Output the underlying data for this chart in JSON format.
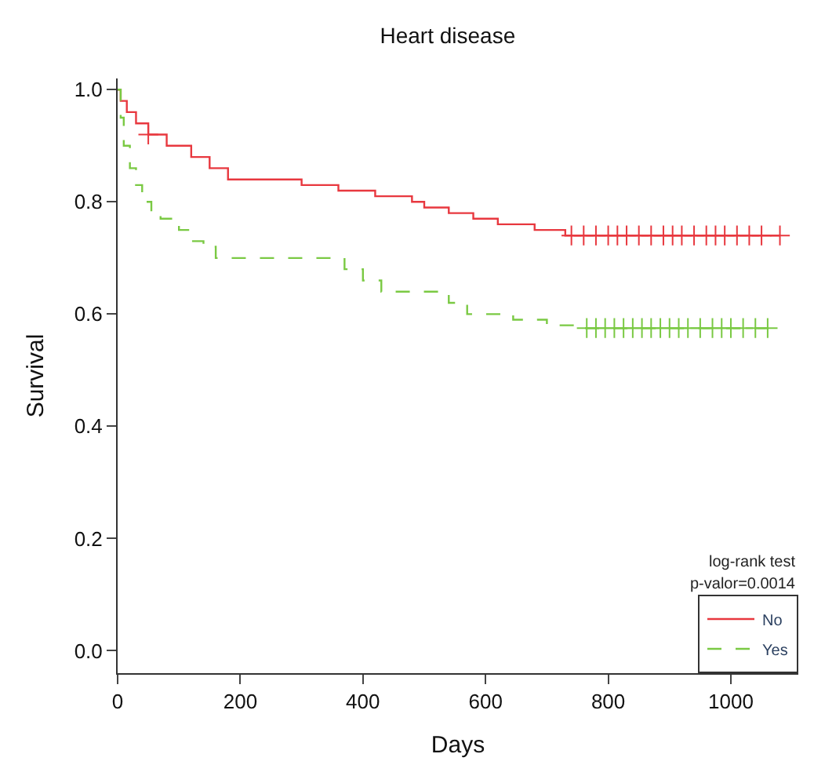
{
  "chart_data": {
    "type": "step",
    "title": "Heart disease",
    "xlabel": "Days",
    "ylabel": "Survival",
    "xlim": [
      0,
      1110
    ],
    "xticks": [
      0,
      200,
      400,
      600,
      800,
      1000
    ],
    "ylim": [
      -0.04,
      1.02
    ],
    "yticks": [
      {
        "value": 0,
        "label": "0.0"
      },
      {
        "value": 0.2,
        "label": "0.2"
      },
      {
        "value": 0.4,
        "label": "0.4"
      },
      {
        "value": 0.6,
        "label": "0.6"
      },
      {
        "value": 0.8,
        "label": "0.8"
      },
      {
        "value": 1,
        "label": "1.0"
      }
    ],
    "grid": false,
    "legend": "bottom right",
    "marker": "none",
    "annotations": [
      "log-rank test",
      "p-valor=0.0014"
    ],
    "series": [
      {
        "name": "No",
        "color": "#e8383f",
        "line_style": "solid",
        "x": [
          0,
          5,
          15,
          30,
          50,
          80,
          120,
          150,
          180,
          300,
          360,
          420,
          480,
          500,
          540,
          580,
          620,
          680,
          730,
          1080
        ],
        "values": [
          1.0,
          0.98,
          0.96,
          0.94,
          0.92,
          0.9,
          0.88,
          0.86,
          0.84,
          0.83,
          0.82,
          0.81,
          0.8,
          0.79,
          0.78,
          0.77,
          0.76,
          0.75,
          0.74,
          0.74
        ]
      },
      {
        "name": "Yes",
        "color": "#7ac943",
        "line_style": "dashed",
        "x": [
          0,
          5,
          10,
          20,
          30,
          40,
          55,
          70,
          100,
          120,
          140,
          160,
          350,
          370,
          400,
          430,
          520,
          540,
          570,
          645,
          700,
          760,
          1080
        ],
        "values": [
          1.0,
          0.95,
          0.9,
          0.86,
          0.83,
          0.8,
          0.78,
          0.77,
          0.75,
          0.73,
          0.72,
          0.7,
          0.7,
          0.68,
          0.66,
          0.64,
          0.64,
          0.62,
          0.6,
          0.59,
          0.58,
          0.575,
          0.575
        ]
      },
      {
        "type": "scatter",
        "marker": "cross",
        "color": "#e8383f",
        "x": [
          50,
          740,
          760,
          780,
          800,
          815,
          830,
          850,
          870,
          890,
          905,
          920,
          940,
          960,
          975,
          990,
          1010,
          1030,
          1050,
          1080
        ],
        "values": [
          0.92,
          0.74,
          0.74,
          0.74,
          0.74,
          0.74,
          0.74,
          0.74,
          0.74,
          0.74,
          0.74,
          0.74,
          0.74,
          0.74,
          0.74,
          0.74,
          0.74,
          0.74,
          0.74,
          0.74
        ]
      },
      {
        "type": "scatter",
        "marker": "cross",
        "color": "#7ac943",
        "x": [
          765,
          780,
          795,
          810,
          825,
          840,
          855,
          870,
          885,
          900,
          915,
          930,
          950,
          970,
          985,
          1000,
          1020,
          1040,
          1060
        ],
        "values": [
          0.575,
          0.575,
          0.575,
          0.575,
          0.575,
          0.575,
          0.575,
          0.575,
          0.575,
          0.575,
          0.575,
          0.575,
          0.575,
          0.575,
          0.575,
          0.575,
          0.575,
          0.575,
          0.575
        ]
      }
    ]
  }
}
